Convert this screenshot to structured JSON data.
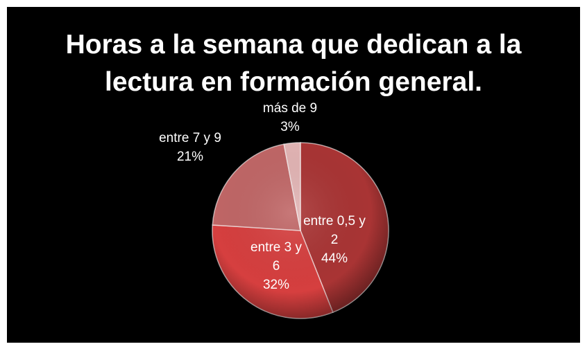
{
  "chart_data": {
    "type": "pie",
    "title": "Horas a la semana que dedican a la lectura en formación general.",
    "categories": [
      "entre 0,5 y 2",
      "entre 3 y 6",
      "entre 7 y 9",
      "más de 9"
    ],
    "values": [
      44,
      32,
      21,
      3
    ],
    "value_labels": [
      "44%",
      "32%",
      "21%",
      "3%"
    ],
    "colors": [
      "#a93434",
      "#d63f3f",
      "#c06666",
      "#e2b4b4"
    ]
  }
}
